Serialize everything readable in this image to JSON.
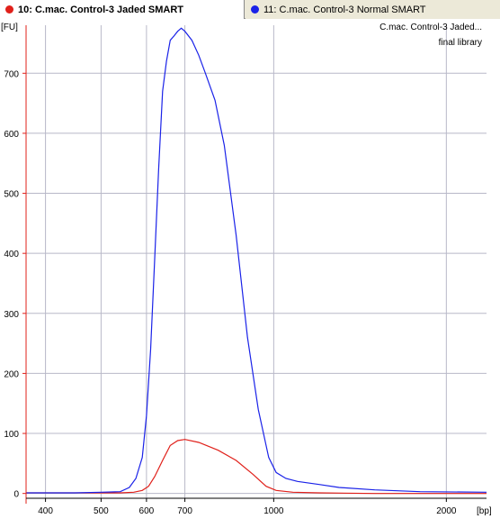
{
  "tabs": [
    {
      "label": "10: C.mac. Control-3 Jaded SMART",
      "color": "#e0201a",
      "active": true
    },
    {
      "label": "11: C.mac. Control-3 Normal SMART",
      "color": "#1a22e8",
      "active": false
    }
  ],
  "chart_data": {
    "type": "line",
    "ylabel": "[FU]",
    "xlabel": "[bp]",
    "x_scale": "log",
    "xlim": [
      370,
      2350
    ],
    "ylim": [
      -8,
      780
    ],
    "x_ticks": [
      400,
      500,
      600,
      700,
      1000,
      2000
    ],
    "x_tick_labels": [
      "400",
      "500",
      "600",
      "700",
      "1000",
      "2000"
    ],
    "y_ticks": [
      0,
      100,
      200,
      300,
      400,
      500,
      600,
      700
    ],
    "y_tick_labels": [
      "0",
      "100",
      "200",
      "300",
      "400",
      "500",
      "600",
      "700"
    ],
    "grid": true,
    "annotation": [
      "C.mac. Control-3 Jaded...",
      "final library"
    ],
    "axis_color": "#e0201a",
    "series": [
      {
        "color": "#e0201a",
        "x": [
          370,
          400,
          450,
          500,
          540,
          570,
          590,
          605,
          620,
          640,
          660,
          680,
          700,
          740,
          800,
          860,
          920,
          970,
          1010,
          1080,
          1200,
          1500,
          2000,
          2350
        ],
        "y": [
          1,
          1,
          1,
          1,
          1,
          2,
          5,
          12,
          28,
          55,
          80,
          88,
          90,
          85,
          72,
          55,
          32,
          12,
          5,
          2,
          1,
          0,
          0,
          0
        ]
      },
      {
        "color": "#1a22e8",
        "x": [
          370,
          400,
          450,
          500,
          540,
          560,
          575,
          590,
          600,
          610,
          620,
          630,
          640,
          650,
          660,
          670,
          680,
          690,
          700,
          720,
          740,
          760,
          790,
          820,
          860,
          900,
          940,
          980,
          1010,
          1050,
          1100,
          1200,
          1300,
          1500,
          1800,
          2350
        ],
        "y": [
          1,
          1,
          1,
          2,
          3,
          10,
          25,
          60,
          130,
          240,
          390,
          540,
          670,
          720,
          755,
          762,
          770,
          775,
          770,
          755,
          730,
          700,
          655,
          580,
          430,
          260,
          140,
          60,
          35,
          25,
          20,
          15,
          10,
          6,
          3,
          2
        ]
      }
    ]
  }
}
